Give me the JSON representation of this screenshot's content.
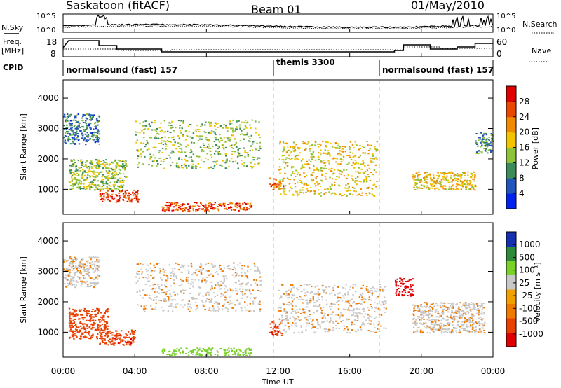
{
  "header": {
    "site": "Saskatoon (fitACF)",
    "beam": "Beam 01",
    "date": "01/May/2010"
  },
  "nsky": {
    "label": "N.Sky",
    "ticks": [
      "10^5",
      "10^0"
    ]
  },
  "nsearch": {
    "label": "N.Search",
    "ticks": [
      "10^5",
      "10^0"
    ]
  },
  "freq": {
    "label_line1": "Freq.",
    "label_line2": "[MHz]",
    "ticks": [
      "18",
      "8"
    ]
  },
  "nave": {
    "label": "Nave",
    "ticks": [
      "60",
      "0"
    ]
  },
  "cpid": {
    "label": "CPID",
    "segments": [
      "normalsound (fast) 157",
      "themis 3300",
      "normalsound (fast) 157"
    ]
  },
  "colors": {
    "power": [
      "#0022ee",
      "#2255bb",
      "#3d8a5a",
      "#8fc33a",
      "#f2c400",
      "#f08a00",
      "#e84800",
      "#e00000"
    ],
    "velocity": [
      "#1530b0",
      "#2c8a3a",
      "#7ad12a",
      "#c8c8c8",
      "#f0a000",
      "#f07a00",
      "#e84000",
      "#e00000"
    ]
  },
  "chart_data": [
    {
      "type": "heatmap",
      "panel": "power",
      "ylabel": "Slant Range [km]",
      "yticks": [
        "4000",
        "3000",
        "2000",
        "1000"
      ],
      "ylim": [
        180,
        4600
      ],
      "xlabel": "Time UT",
      "xticks": [
        "00:00",
        "04:00",
        "08:00",
        "12:00",
        "16:00",
        "20:00",
        "00:00"
      ],
      "colorbar": {
        "label": "Power [dB]",
        "ticks": [
          "28",
          "24",
          "20",
          "16",
          "12",
          "8",
          "4"
        ],
        "range": [
          0,
          32
        ]
      },
      "regions": [
        {
          "t": [
            0.0,
            2.0
          ],
          "r": [
            2500,
            3500
          ],
          "level": 8
        },
        {
          "t": [
            0.3,
            3.5
          ],
          "r": [
            1000,
            2000
          ],
          "level": 14
        },
        {
          "t": [
            2.0,
            4.2
          ],
          "r": [
            600,
            1000
          ],
          "level": 27
        },
        {
          "t": [
            4.0,
            11.0
          ],
          "r": [
            1700,
            3300
          ],
          "level": 14
        },
        {
          "t": [
            5.5,
            10.5
          ],
          "r": [
            300,
            600
          ],
          "level": 26
        },
        {
          "t": [
            11.5,
            12.3
          ],
          "r": [
            1000,
            1400
          ],
          "level": 24
        },
        {
          "t": [
            12.0,
            17.5
          ],
          "r": [
            800,
            2600
          ],
          "level": 18
        },
        {
          "t": [
            19.5,
            23.0
          ],
          "r": [
            1000,
            1600
          ],
          "level": 19
        },
        {
          "t": [
            23.0,
            24.0
          ],
          "r": [
            2200,
            2900
          ],
          "level": 10
        }
      ]
    },
    {
      "type": "heatmap",
      "panel": "velocity",
      "ylabel": "Slant Range [km]",
      "yticks": [
        "4000",
        "3000",
        "2000",
        "1000"
      ],
      "ylim": [
        180,
        4600
      ],
      "xlabel": "Time UT",
      "xticks": [
        "00:00",
        "04:00",
        "08:00",
        "12:00",
        "16:00",
        "20:00",
        "00:00"
      ],
      "colorbar": {
        "label": "Velocity [m s⁻¹]",
        "ticks": [
          "1000",
          "500",
          "100",
          "25",
          "-25",
          "-100",
          "-500",
          "-1000"
        ],
        "range": [
          -1000,
          1000
        ]
      },
      "regions": [
        {
          "t": [
            0.0,
            2.0
          ],
          "r": [
            2500,
            3500
          ],
          "v": 0
        },
        {
          "t": [
            0.3,
            2.5
          ],
          "r": [
            800,
            1800
          ],
          "v": -300
        },
        {
          "t": [
            2.0,
            4.0
          ],
          "r": [
            600,
            1100
          ],
          "v": -450
        },
        {
          "t": [
            4.0,
            11.0
          ],
          "r": [
            1700,
            3300
          ],
          "v": 0
        },
        {
          "t": [
            5.5,
            10.5
          ],
          "r": [
            250,
            500
          ],
          "v": 150
        },
        {
          "t": [
            11.5,
            12.2
          ],
          "r": [
            900,
            1400
          ],
          "v": -450
        },
        {
          "t": [
            12.0,
            18.0
          ],
          "r": [
            1000,
            2600
          ],
          "v": 0
        },
        {
          "t": [
            18.5,
            19.5
          ],
          "r": [
            2200,
            2800
          ],
          "v": -900
        },
        {
          "t": [
            19.5,
            23.5
          ],
          "r": [
            1000,
            2000
          ],
          "v": 0
        }
      ]
    }
  ]
}
